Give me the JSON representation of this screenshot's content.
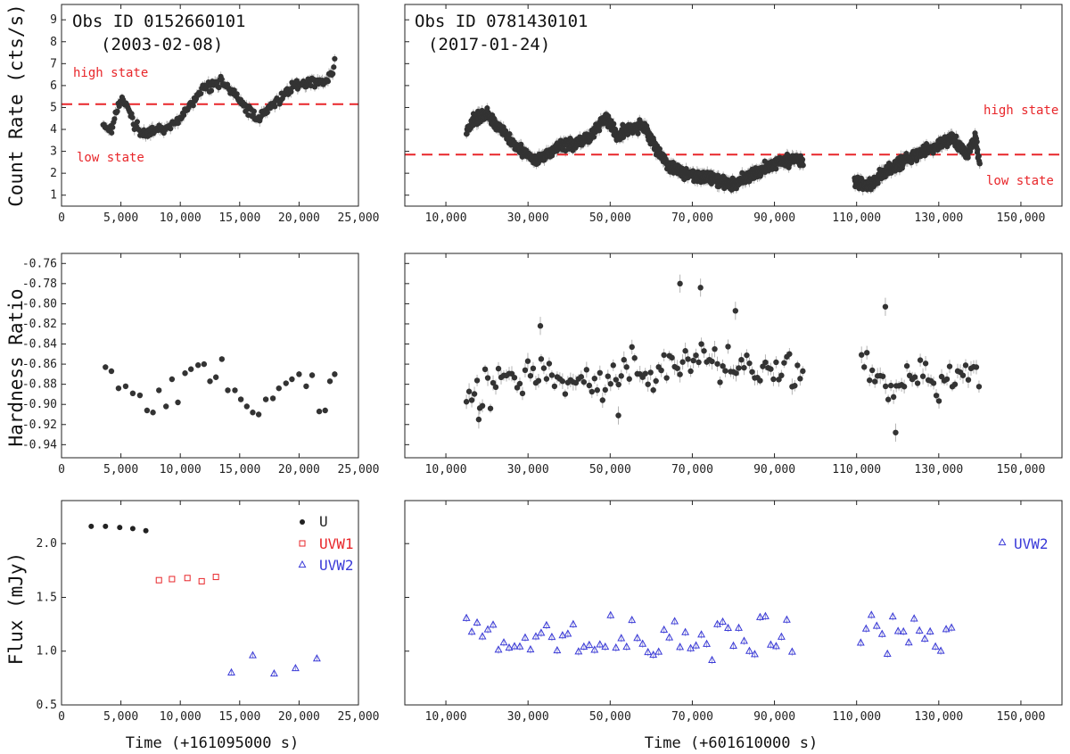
{
  "figure": {
    "xlabel_left": "Time (+161095000 s)",
    "xlabel_right": "Time (+601610000 s)"
  },
  "colors": {
    "points": "#333333",
    "errorbars": "#b4b4b4",
    "threshold": "#e8262a",
    "uvw1": "#e8262a",
    "uvw2": "#3a3ad8",
    "u": "#222222"
  },
  "chart_data": [
    {
      "id": "count_left",
      "type": "scatter",
      "title": "Obs ID 0152660101",
      "date": "(2003-02-08)",
      "ylabel": "Count Rate (cts/s)",
      "xlim": [
        0,
        25000
      ],
      "ylim": [
        0.5,
        9.7
      ],
      "xticks": [
        0,
        5000,
        10000,
        15000,
        20000,
        25000
      ],
      "xtick_labels": [
        "0",
        "5,000",
        "10,000",
        "15,000",
        "20,000",
        "25,000"
      ],
      "yticks": [
        1,
        2,
        3,
        4,
        5,
        6,
        7,
        8,
        9
      ],
      "ytick_labels": [
        "1",
        "2",
        "3",
        "4",
        "5",
        "6",
        "7",
        "8",
        "9"
      ],
      "threshold": 5.15,
      "annotations": {
        "high": "high state",
        "low": "low state"
      },
      "density": 1.0,
      "knots": [
        [
          3500,
          4.2
        ],
        [
          4200,
          4.0
        ],
        [
          4700,
          5.0
        ],
        [
          5200,
          5.4
        ],
        [
          5600,
          4.9
        ],
        [
          6000,
          4.4
        ],
        [
          6600,
          3.9
        ],
        [
          7300,
          3.8
        ],
        [
          8000,
          3.95
        ],
        [
          9000,
          4.05
        ],
        [
          10000,
          4.5
        ],
        [
          11000,
          5.2
        ],
        [
          12000,
          5.9
        ],
        [
          13000,
          6.1
        ],
        [
          13500,
          6.25
        ],
        [
          14200,
          5.8
        ],
        [
          15000,
          5.3
        ],
        [
          15700,
          4.9
        ],
        [
          16500,
          4.5
        ],
        [
          17200,
          4.9
        ],
        [
          18000,
          5.2
        ],
        [
          19000,
          5.75
        ],
        [
          20000,
          6.1
        ],
        [
          21000,
          6.15
        ],
        [
          22000,
          6.2
        ],
        [
          22800,
          6.4
        ],
        [
          23000,
          7.3
        ]
      ],
      "spread": 0.18,
      "err": 0.2
    },
    {
      "id": "count_right",
      "type": "scatter",
      "title": "Obs ID 0781430101",
      "date": "(2017-01-24)",
      "xlim": [
        0,
        160000
      ],
      "ylim": [
        0.5,
        9.7
      ],
      "xticks": [
        10000,
        30000,
        50000,
        70000,
        90000,
        110000,
        130000,
        150000
      ],
      "xtick_labels": [
        "10,000",
        "30,000",
        "50,000",
        "70,000",
        "90,000",
        "110,000",
        "130,000",
        "150,000"
      ],
      "threshold": 2.85,
      "annotations": {
        "high": "high state",
        "low": "low state"
      },
      "density": 0.18,
      "knots": [
        [
          15000,
          3.9
        ],
        [
          17000,
          4.5
        ],
        [
          20000,
          4.7
        ],
        [
          23000,
          4.1
        ],
        [
          26000,
          3.4
        ],
        [
          29000,
          3.0
        ],
        [
          32000,
          2.6
        ],
        [
          35000,
          2.9
        ],
        [
          38000,
          3.3
        ],
        [
          42000,
          3.4
        ],
        [
          45000,
          3.6
        ],
        [
          47500,
          4.3
        ],
        [
          49000,
          4.5
        ],
        [
          52000,
          3.7
        ],
        [
          54000,
          4.0
        ],
        [
          58000,
          4.2
        ],
        [
          61000,
          3.2
        ],
        [
          63000,
          2.6
        ],
        [
          66000,
          2.1
        ],
        [
          70000,
          1.95
        ],
        [
          75000,
          1.75
        ],
        [
          80000,
          1.5
        ],
        [
          84000,
          1.9
        ],
        [
          88000,
          2.25
        ],
        [
          92000,
          2.6
        ],
        [
          96000,
          2.6
        ],
        [
          110000,
          1.55
        ],
        [
          113000,
          1.4
        ],
        [
          116000,
          1.95
        ],
        [
          120000,
          2.4
        ],
        [
          125000,
          2.9
        ],
        [
          130000,
          3.3
        ],
        [
          133000,
          3.6
        ],
        [
          135000,
          3.2
        ],
        [
          137000,
          2.9
        ],
        [
          139000,
          3.6
        ],
        [
          140000,
          2.4
        ]
      ],
      "spread": 0.22,
      "err": 0.2
    },
    {
      "id": "hr_left",
      "type": "scatter",
      "ylabel": "Hardness Ratio",
      "xlim": [
        0,
        25000
      ],
      "ylim": [
        -0.953,
        -0.75
      ],
      "xticks": [
        0,
        5000,
        10000,
        15000,
        20000,
        25000
      ],
      "xtick_labels": [
        "0",
        "5,000",
        "10,000",
        "15,000",
        "20,000",
        "25,000"
      ],
      "yticks": [
        -0.94,
        -0.92,
        -0.9,
        -0.88,
        -0.86,
        -0.84,
        -0.82,
        -0.8,
        -0.78,
        -0.76
      ],
      "ytick_labels": [
        "-0.94",
        "-0.92",
        "-0.90",
        "-0.88",
        "-0.86",
        "-0.84",
        "-0.82",
        "-0.80",
        "-0.78",
        "-0.76"
      ],
      "points": [
        [
          3700,
          -0.863
        ],
        [
          4200,
          -0.867
        ],
        [
          4800,
          -0.884
        ],
        [
          5400,
          -0.882
        ],
        [
          6000,
          -0.889
        ],
        [
          6600,
          -0.891
        ],
        [
          7200,
          -0.906
        ],
        [
          7700,
          -0.908
        ],
        [
          8200,
          -0.886
        ],
        [
          8800,
          -0.902
        ],
        [
          9300,
          -0.875
        ],
        [
          9800,
          -0.898
        ],
        [
          10400,
          -0.869
        ],
        [
          10900,
          -0.865
        ],
        [
          11500,
          -0.861
        ],
        [
          12000,
          -0.86
        ],
        [
          12500,
          -0.877
        ],
        [
          13000,
          -0.873
        ],
        [
          13500,
          -0.855
        ],
        [
          14000,
          -0.886
        ],
        [
          14600,
          -0.886
        ],
        [
          15100,
          -0.895
        ],
        [
          15600,
          -0.902
        ],
        [
          16100,
          -0.908
        ],
        [
          16600,
          -0.91
        ],
        [
          17200,
          -0.895
        ],
        [
          17800,
          -0.894
        ],
        [
          18300,
          -0.884
        ],
        [
          18900,
          -0.879
        ],
        [
          19400,
          -0.875
        ],
        [
          20000,
          -0.87
        ],
        [
          20600,
          -0.882
        ],
        [
          21100,
          -0.871
        ],
        [
          21700,
          -0.907
        ],
        [
          22200,
          -0.906
        ],
        [
          22600,
          -0.877
        ],
        [
          23000,
          -0.87
        ]
      ],
      "err": 0.003
    },
    {
      "id": "hr_right",
      "type": "scatter",
      "xlim": [
        0,
        160000
      ],
      "ylim": [
        -0.953,
        -0.75
      ],
      "xticks": [
        10000,
        30000,
        50000,
        70000,
        90000,
        110000,
        130000,
        150000
      ],
      "xtick_labels": [
        "10,000",
        "30,000",
        "50,000",
        "70,000",
        "90,000",
        "110,000",
        "130,000",
        "150,000"
      ],
      "density": 0.06,
      "knots": [
        [
          15000,
          -0.893
        ],
        [
          25000,
          -0.878
        ],
        [
          35000,
          -0.872
        ],
        [
          45000,
          -0.885
        ],
        [
          55000,
          -0.868
        ],
        [
          65000,
          -0.858
        ],
        [
          75000,
          -0.862
        ],
        [
          85000,
          -0.868
        ],
        [
          97000,
          -0.865
        ],
        [
          112000,
          -0.862
        ],
        [
          118000,
          -0.884
        ],
        [
          124000,
          -0.872
        ],
        [
          130000,
          -0.875
        ],
        [
          140000,
          -0.87
        ]
      ],
      "extremes": [
        [
          67000,
          -0.78
        ],
        [
          72000,
          -0.784
        ],
        [
          80500,
          -0.807
        ],
        [
          117000,
          -0.803
        ],
        [
          119500,
          -0.928
        ],
        [
          33000,
          -0.822
        ],
        [
          18000,
          -0.915
        ],
        [
          52000,
          -0.911
        ]
      ],
      "spread": 0.017,
      "err": 0.006
    },
    {
      "id": "flux_left",
      "type": "scatter",
      "ylabel": "Flux (mJy)",
      "xlim": [
        0,
        25000
      ],
      "ylim": [
        0.5,
        2.4
      ],
      "xticks": [
        0,
        5000,
        10000,
        15000,
        20000,
        25000
      ],
      "xtick_labels": [
        "0",
        "5,000",
        "10,000",
        "15,000",
        "20,000",
        "25,000"
      ],
      "yticks": [
        0.5,
        1.0,
        1.5,
        2.0
      ],
      "ytick_labels": [
        "0.5",
        "1.0",
        "1.5",
        "2.0"
      ],
      "legend": [
        {
          "name": "U",
          "marker": "circle",
          "color": "#222222"
        },
        {
          "name": "UVW1",
          "marker": "square",
          "color": "#e8262a"
        },
        {
          "name": "UVW2",
          "marker": "triangle",
          "color": "#3a3ad8"
        }
      ],
      "series": [
        {
          "name": "U",
          "marker": "circle",
          "points": [
            [
              2500,
              2.16
            ],
            [
              3700,
              2.16
            ],
            [
              4900,
              2.15
            ],
            [
              6000,
              2.14
            ],
            [
              7100,
              2.12
            ]
          ]
        },
        {
          "name": "UVW1",
          "marker": "square",
          "points": [
            [
              8200,
              1.66
            ],
            [
              9300,
              1.67
            ],
            [
              10600,
              1.68
            ],
            [
              11800,
              1.65
            ],
            [
              13000,
              1.69
            ]
          ]
        },
        {
          "name": "UVW2",
          "marker": "triangle",
          "points": [
            [
              14300,
              0.8
            ],
            [
              16100,
              0.96
            ],
            [
              17900,
              0.79
            ],
            [
              19700,
              0.84
            ],
            [
              21500,
              0.93
            ]
          ]
        }
      ]
    },
    {
      "id": "flux_right",
      "type": "scatter",
      "xlim": [
        0,
        160000
      ],
      "ylim": [
        0.5,
        2.4
      ],
      "xticks": [
        10000,
        30000,
        50000,
        70000,
        90000,
        110000,
        130000,
        150000
      ],
      "xtick_labels": [
        "10,000",
        "30,000",
        "50,000",
        "70,000",
        "90,000",
        "110,000",
        "130,000",
        "150,000"
      ],
      "legend": [
        {
          "name": "UVW2",
          "marker": "triangle",
          "color": "#3a3ad8"
        }
      ],
      "segments": [
        [
          15000,
          95000
        ],
        [
          111000,
          134000
        ]
      ],
      "step": 1300,
      "mean": 1.12,
      "spread": 0.17,
      "err": 0.035
    }
  ]
}
